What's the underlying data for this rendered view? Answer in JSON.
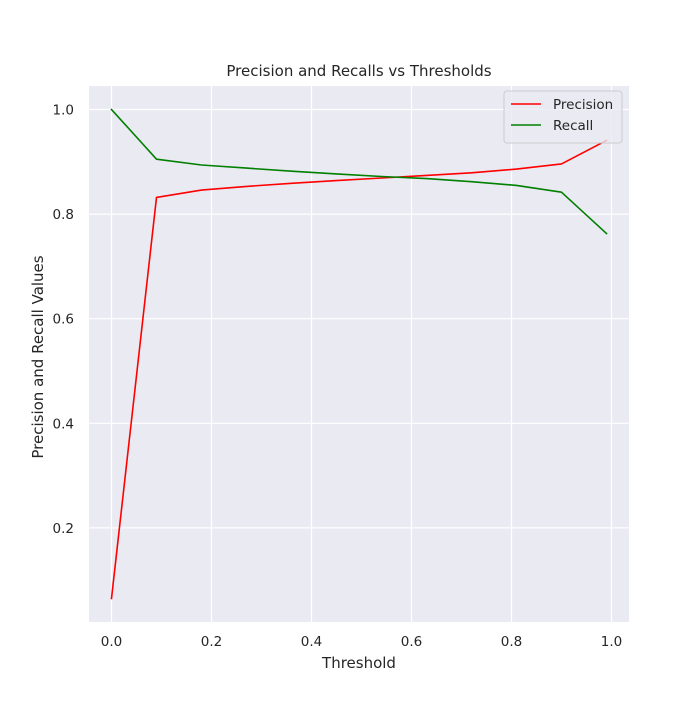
{
  "chart_data": {
    "type": "line",
    "title": "Precision and Recalls vs Thresholds",
    "xlabel": "Threshold",
    "ylabel": "Precision and Recall Values",
    "xlim": [
      -0.045,
      1.035
    ],
    "ylim": [
      0.02,
      1.045
    ],
    "xticks": [
      0.0,
      0.2,
      0.4,
      0.6,
      0.8,
      1.0
    ],
    "xtick_labels": [
      "0.0",
      "0.2",
      "0.4",
      "0.6",
      "0.8",
      "1.0"
    ],
    "yticks": [
      0.2,
      0.4,
      0.6,
      0.8,
      1.0
    ],
    "ytick_labels": [
      "0.2",
      "0.4",
      "0.6",
      "0.8",
      "1.0"
    ],
    "grid": true,
    "legend_position": "top-right",
    "series": [
      {
        "name": "Precision",
        "color": "#ff0000",
        "x": [
          0.0,
          0.09,
          0.18,
          0.27,
          0.36,
          0.45,
          0.54,
          0.63,
          0.72,
          0.81,
          0.9,
          0.99
        ],
        "y": [
          0.065,
          0.832,
          0.846,
          0.853,
          0.859,
          0.864,
          0.869,
          0.874,
          0.879,
          0.886,
          0.896,
          0.941
        ]
      },
      {
        "name": "Recall",
        "color": "#008000",
        "x": [
          0.0,
          0.09,
          0.18,
          0.27,
          0.36,
          0.45,
          0.54,
          0.63,
          0.72,
          0.81,
          0.9,
          0.99
        ],
        "y": [
          1.0,
          0.905,
          0.894,
          0.888,
          0.882,
          0.877,
          0.872,
          0.868,
          0.862,
          0.855,
          0.842,
          0.763
        ]
      }
    ]
  }
}
